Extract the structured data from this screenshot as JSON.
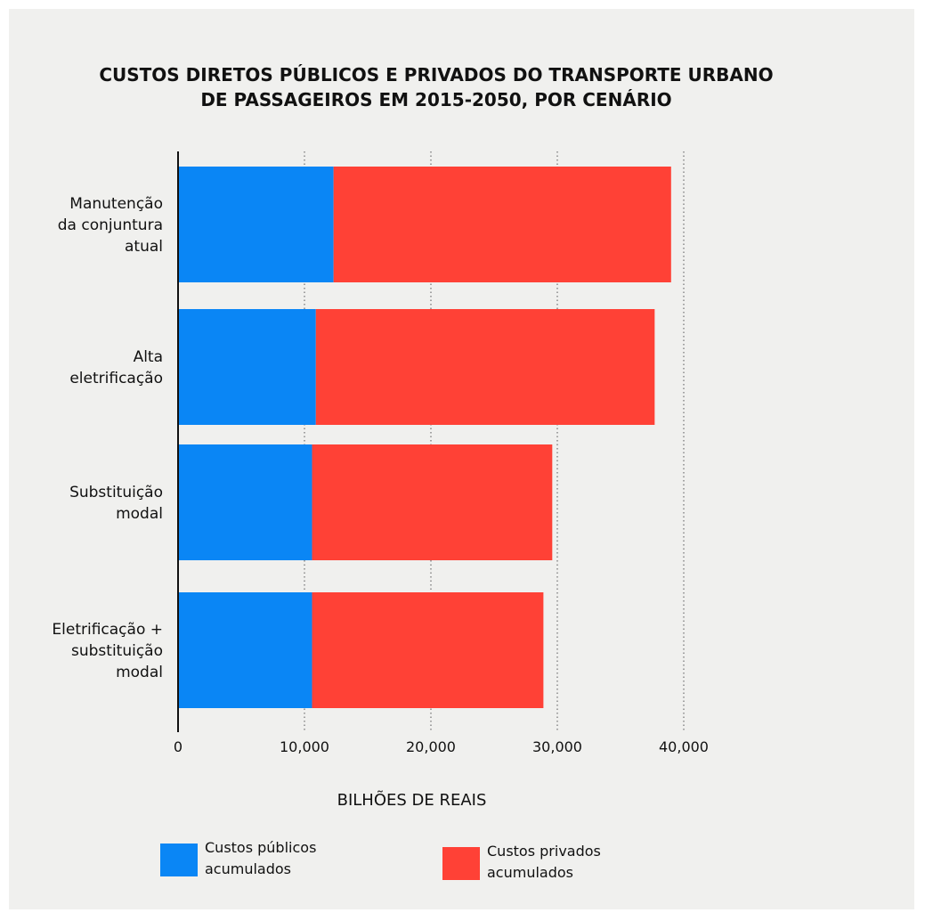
{
  "chart_data": {
    "type": "bar",
    "orientation": "horizontal",
    "stacked": true,
    "title_lines": [
      "CUSTOS DIRETOS PÚBLICOS E PRIVADOS DO TRANSPORTE URBANO",
      "DE PASSAGEIROS EM 2015-2050, POR CENÁRIO"
    ],
    "categories": [
      [
        "Manutenção",
        "da conjuntura",
        "atual"
      ],
      [
        "Alta",
        "eletrificação"
      ],
      [
        "Substituição",
        "modal"
      ],
      [
        "Eletrificação +",
        "substituição",
        "modal"
      ]
    ],
    "series": [
      {
        "name": "Custos públicos acumulados",
        "name_lines": [
          "Custos públicos",
          "acumulados"
        ],
        "color": "#0a86f5",
        "values": [
          12300,
          10900,
          10600,
          10600
        ]
      },
      {
        "name": "Custos privados acumulados",
        "name_lines": [
          "Custos privados",
          "acumulados"
        ],
        "color": "#ff4136",
        "values": [
          26700,
          26800,
          19000,
          18300
        ]
      }
    ],
    "xlabel": "BILHÕES DE REAIS",
    "xlim": [
      0,
      40000
    ],
    "xticks": [
      0,
      10000,
      20000,
      30000,
      40000
    ],
    "xtick_labels": [
      "0",
      "10,000",
      "20,000",
      "30,000",
      "40,000"
    ],
    "grid": "vertical dotted",
    "legend_position": "bottom"
  }
}
